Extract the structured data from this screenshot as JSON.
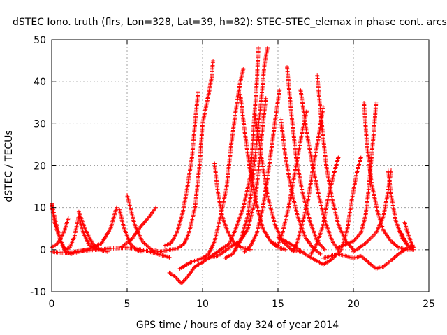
{
  "chart_data": {
    "type": "scatter",
    "title": "dSTEC Iono. truth (flrs, Lon=328, Lat=39, h=82): STEC-STEC_elemax in phase cont. arcs",
    "xlabel": "GPS time / hours of day 324 of year 2014",
    "ylabel": "dSTEC  / TECUs",
    "xlim": [
      0,
      25
    ],
    "ylim": [
      -10,
      50
    ],
    "x_ticks": [
      0,
      5,
      10,
      15,
      20,
      25
    ],
    "y_ticks": [
      -10,
      0,
      10,
      20,
      30,
      40,
      50
    ],
    "grid": true,
    "marker": "+",
    "series_color": "#ff0000",
    "series": [
      {
        "arc": [
          [
            0.0,
            11.0
          ],
          [
            0.3,
            6.0
          ],
          [
            0.6,
            2.0
          ],
          [
            0.9,
            0.0
          ],
          [
            1.2,
            0.5
          ],
          [
            1.5,
            3.0
          ],
          [
            1.8,
            8.0
          ],
          [
            2.1,
            4.0
          ],
          [
            2.5,
            1.0
          ],
          [
            3.0,
            0.0
          ],
          [
            3.5,
            0.0
          ]
        ]
      },
      {
        "arc": [
          [
            0.0,
            10.5
          ],
          [
            0.2,
            6.5
          ],
          [
            0.5,
            3.0
          ],
          [
            0.9,
            -0.5
          ],
          [
            1.3,
            -1.0
          ],
          [
            1.8,
            -0.5
          ],
          [
            2.5,
            0.2
          ],
          [
            3.3,
            1.5
          ],
          [
            3.9,
            5.0
          ],
          [
            4.3,
            10.0
          ]
        ]
      },
      {
        "arc": [
          [
            0.0,
            0.5
          ],
          [
            0.4,
            1.5
          ],
          [
            0.8,
            4.0
          ],
          [
            1.1,
            7.5
          ]
        ]
      },
      {
        "arc": [
          [
            0.0,
            -0.5
          ],
          [
            1.0,
            -0.8
          ],
          [
            2.0,
            -0.2
          ],
          [
            3.0,
            0.0
          ],
          [
            4.0,
            0.3
          ],
          [
            5.0,
            0.5
          ],
          [
            6.0,
            0.0
          ],
          [
            7.0,
            -1.0
          ],
          [
            7.5,
            -1.5
          ],
          [
            7.8,
            -1.8
          ]
        ]
      },
      {
        "arc": [
          [
            1.8,
            9.0
          ],
          [
            2.2,
            5.0
          ],
          [
            2.7,
            1.5
          ],
          [
            3.2,
            0.0
          ],
          [
            3.7,
            -0.5
          ]
        ]
      },
      {
        "arc": [
          [
            4.5,
            9.5
          ],
          [
            4.8,
            5.0
          ],
          [
            5.2,
            1.5
          ],
          [
            5.6,
            0.0
          ],
          [
            6.0,
            -0.5
          ]
        ]
      },
      {
        "arc": [
          [
            4.6,
            0.5
          ],
          [
            5.3,
            2.5
          ],
          [
            5.9,
            5.5
          ],
          [
            6.5,
            8.0
          ],
          [
            6.9,
            10.0
          ]
        ]
      },
      {
        "arc": [
          [
            5.0,
            13.0
          ],
          [
            5.5,
            6.0
          ],
          [
            6.0,
            2.0
          ],
          [
            6.6,
            0.0
          ],
          [
            7.2,
            -0.5
          ],
          [
            7.8,
            0.0
          ],
          [
            8.3,
            0.2
          ],
          [
            8.8,
            1.5
          ],
          [
            9.1,
            4.0
          ],
          [
            9.5,
            10.0
          ],
          [
            9.8,
            20.0
          ],
          [
            10.0,
            30.0
          ],
          [
            10.4,
            37.0
          ],
          [
            10.6,
            41.0
          ],
          [
            10.7,
            45.0
          ]
        ]
      },
      {
        "arc": [
          [
            7.5,
            1.0
          ],
          [
            7.9,
            1.5
          ],
          [
            8.3,
            4.0
          ],
          [
            8.7,
            9.0
          ],
          [
            9.0,
            15.0
          ],
          [
            9.3,
            22.0
          ],
          [
            9.5,
            30.0
          ],
          [
            9.7,
            37.5
          ]
        ]
      },
      {
        "arc": [
          [
            7.8,
            -5.5
          ],
          [
            8.2,
            -6.5
          ],
          [
            8.6,
            -8.0
          ],
          [
            9.0,
            -6.5
          ],
          [
            9.5,
            -4.0
          ],
          [
            10.0,
            -3.0
          ],
          [
            10.6,
            -1.5
          ],
          [
            11.2,
            0.0
          ],
          [
            11.8,
            1.5
          ],
          [
            12.2,
            5.0
          ],
          [
            12.7,
            10.0
          ],
          [
            13.2,
            18.0
          ],
          [
            13.4,
            30.0
          ],
          [
            13.6,
            40.0
          ],
          [
            13.7,
            48.0
          ]
        ]
      },
      {
        "arc": [
          [
            8.5,
            -4.5
          ],
          [
            9.2,
            -3.0
          ],
          [
            10.0,
            -2.0
          ],
          [
            11.0,
            -1.5
          ],
          [
            12.0,
            1.0
          ],
          [
            12.5,
            2.0
          ],
          [
            13.0,
            5.0
          ],
          [
            13.5,
            12.0
          ],
          [
            13.8,
            22.0
          ],
          [
            14.0,
            30.0
          ],
          [
            14.2,
            36.0
          ]
        ]
      },
      {
        "arc": [
          [
            10.0,
            -2.0
          ],
          [
            10.4,
            -1.0
          ],
          [
            10.8,
            2.0
          ],
          [
            11.2,
            8.0
          ],
          [
            11.6,
            15.0
          ],
          [
            11.9,
            25.0
          ],
          [
            12.2,
            33.0
          ],
          [
            12.5,
            40.0
          ],
          [
            12.7,
            43.0
          ]
        ]
      },
      {
        "arc": [
          [
            10.8,
            20.5
          ],
          [
            11.0,
            14.0
          ],
          [
            11.3,
            8.0
          ],
          [
            11.7,
            4.0
          ],
          [
            12.1,
            1.5
          ],
          [
            12.6,
            0.5
          ],
          [
            13.2,
            0.0
          ]
        ]
      },
      {
        "arc": [
          [
            11.5,
            -2.0
          ],
          [
            12.0,
            -1.0
          ],
          [
            12.5,
            2.0
          ],
          [
            13.0,
            8.0
          ],
          [
            13.3,
            16.0
          ],
          [
            13.6,
            26.0
          ],
          [
            13.9,
            36.0
          ],
          [
            14.1,
            44.0
          ],
          [
            14.3,
            48.0
          ]
        ]
      },
      {
        "arc": [
          [
            12.5,
            37.0
          ],
          [
            12.8,
            28.0
          ],
          [
            13.1,
            20.0
          ],
          [
            13.4,
            14.0
          ],
          [
            13.7,
            9.0
          ],
          [
            14.0,
            5.0
          ],
          [
            14.5,
            2.0
          ],
          [
            15.0,
            0.5
          ],
          [
            15.5,
            0.0
          ]
        ]
      },
      {
        "arc": [
          [
            12.8,
            -0.5
          ],
          [
            13.2,
            1.0
          ],
          [
            13.6,
            4.0
          ],
          [
            14.0,
            10.0
          ],
          [
            14.3,
            17.0
          ],
          [
            14.6,
            25.0
          ],
          [
            14.9,
            33.0
          ],
          [
            15.1,
            38.0
          ]
        ]
      },
      {
        "arc": [
          [
            13.5,
            32.0
          ],
          [
            13.9,
            22.0
          ],
          [
            14.3,
            13.0
          ],
          [
            14.8,
            6.0
          ],
          [
            15.3,
            2.0
          ],
          [
            15.9,
            0.0
          ],
          [
            16.5,
            -0.5
          ]
        ]
      },
      {
        "arc": [
          [
            14.0,
            5.0
          ],
          [
            14.5,
            2.0
          ],
          [
            15.0,
            1.0
          ],
          [
            15.3,
            4.0
          ],
          [
            15.7,
            10.0
          ],
          [
            16.0,
            16.0
          ],
          [
            16.3,
            22.0
          ],
          [
            16.6,
            28.0
          ],
          [
            16.9,
            33.0
          ]
        ]
      },
      {
        "arc": [
          [
            15.2,
            31.0
          ],
          [
            15.5,
            22.0
          ],
          [
            15.9,
            14.0
          ],
          [
            16.3,
            8.0
          ],
          [
            16.8,
            3.0
          ],
          [
            17.3,
            0.5
          ],
          [
            17.8,
            -1.0
          ]
        ]
      },
      {
        "arc": [
          [
            15.6,
            43.5
          ],
          [
            15.9,
            32.0
          ],
          [
            16.2,
            22.0
          ],
          [
            16.6,
            14.0
          ],
          [
            17.1,
            7.0
          ],
          [
            17.6,
            2.0
          ],
          [
            18.1,
            0.0
          ]
        ]
      },
      {
        "arc": [
          [
            16.0,
            -0.5
          ],
          [
            16.3,
            2.0
          ],
          [
            16.6,
            6.0
          ],
          [
            17.0,
            12.0
          ],
          [
            17.3,
            19.0
          ],
          [
            17.7,
            27.0
          ],
          [
            18.0,
            34.0
          ]
        ]
      },
      {
        "arc": [
          [
            16.5,
            38.0
          ],
          [
            16.9,
            28.0
          ],
          [
            17.3,
            20.0
          ],
          [
            17.7,
            13.0
          ],
          [
            18.1,
            7.0
          ],
          [
            18.6,
            2.0
          ],
          [
            19.0,
            0.0
          ]
        ]
      },
      {
        "arc": [
          [
            17.2,
            -1.0
          ],
          [
            17.6,
            1.5
          ],
          [
            18.0,
            6.0
          ],
          [
            18.3,
            12.0
          ],
          [
            18.7,
            18.0
          ],
          [
            19.0,
            22.0
          ]
        ]
      },
      {
        "arc": [
          [
            17.6,
            41.5
          ],
          [
            17.9,
            30.0
          ],
          [
            18.2,
            20.0
          ],
          [
            18.6,
            12.0
          ],
          [
            19.0,
            6.0
          ],
          [
            19.5,
            2.0
          ],
          [
            20.0,
            0.0
          ]
        ]
      },
      {
        "arc": [
          [
            15.0,
            3.0
          ],
          [
            16.0,
            1.0
          ],
          [
            17.0,
            -1.5
          ],
          [
            18.0,
            -3.5
          ],
          [
            18.5,
            -2.5
          ],
          [
            19.2,
            0.0
          ],
          [
            19.6,
            5.0
          ],
          [
            19.9,
            12.0
          ],
          [
            20.2,
            18.0
          ],
          [
            20.5,
            22.0
          ]
        ]
      },
      {
        "arc": [
          [
            18.0,
            -2.0
          ],
          [
            19.0,
            -1.0
          ],
          [
            20.0,
            -2.0
          ],
          [
            20.5,
            -1.5
          ],
          [
            21.0,
            -3.0
          ],
          [
            21.5,
            -4.5
          ],
          [
            22.0,
            -4.0
          ],
          [
            22.5,
            -2.5
          ],
          [
            23.0,
            -1.0
          ],
          [
            23.6,
            0.5
          ]
        ]
      },
      {
        "arc": [
          [
            19.0,
            0.5
          ],
          [
            20.0,
            2.0
          ],
          [
            20.5,
            4.0
          ],
          [
            20.8,
            8.0
          ],
          [
            21.0,
            14.0
          ],
          [
            21.2,
            22.0
          ],
          [
            21.4,
            30.0
          ],
          [
            21.5,
            35.0
          ]
        ]
      },
      {
        "arc": [
          [
            20.7,
            35.0
          ],
          [
            20.9,
            25.0
          ],
          [
            21.2,
            16.0
          ],
          [
            21.6,
            9.0
          ],
          [
            22.0,
            4.5
          ],
          [
            22.5,
            2.0
          ],
          [
            23.0,
            0.5
          ],
          [
            23.5,
            0.0
          ],
          [
            24.0,
            0.0
          ]
        ]
      },
      {
        "arc": [
          [
            20.0,
            -0.5
          ],
          [
            20.8,
            1.5
          ],
          [
            21.5,
            4.0
          ],
          [
            22.0,
            8.0
          ],
          [
            22.3,
            14.0
          ],
          [
            22.5,
            19.0
          ]
        ]
      },
      {
        "arc": [
          [
            22.3,
            19.0
          ],
          [
            22.5,
            13.0
          ],
          [
            22.8,
            7.0
          ],
          [
            23.2,
            3.0
          ],
          [
            23.6,
            1.0
          ],
          [
            24.0,
            0.5
          ]
        ]
      },
      {
        "arc": [
          [
            23.0,
            5.0
          ],
          [
            23.3,
            3.0
          ],
          [
            23.6,
            1.0
          ],
          [
            23.9,
            0.0
          ]
        ]
      },
      {
        "arc": [
          [
            23.4,
            6.5
          ],
          [
            23.6,
            4.0
          ],
          [
            23.8,
            2.0
          ],
          [
            24.0,
            0.5
          ]
        ]
      }
    ]
  }
}
